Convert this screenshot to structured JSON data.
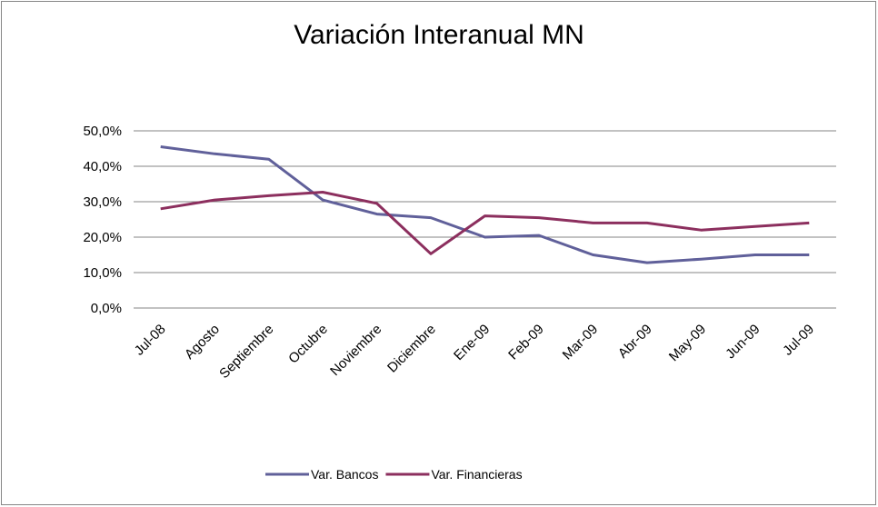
{
  "chart_data": {
    "type": "line",
    "title": "Variación Interanual MN",
    "categories": [
      "Jul-08",
      "Agosto",
      "Septiembre",
      "Octubre",
      "Noviembre",
      "Diciembre",
      "Ene-09",
      "Feb-09",
      "Mar-09",
      "Abr-09",
      "May-09",
      "Jun-09",
      "Jul-09"
    ],
    "series": [
      {
        "name": "Var. Bancos",
        "color": "#60609a",
        "values": [
          45.5,
          43.5,
          42,
          30.5,
          26.5,
          25.5,
          20,
          20.5,
          15,
          12.8,
          13.8,
          15,
          15
        ]
      },
      {
        "name": "Var. Financieras",
        "color": "#8c2f5e",
        "values": [
          28,
          30.5,
          31.7,
          32.7,
          29.5,
          15.3,
          26,
          25.5,
          24,
          24,
          22,
          23,
          24
        ]
      }
    ],
    "ylim": [
      0,
      50
    ],
    "yticks": [
      {
        "value": 0,
        "label": "0,0%"
      },
      {
        "value": 10,
        "label": "10,0%"
      },
      {
        "value": 20,
        "label": "20,0%"
      },
      {
        "value": 30,
        "label": "30,0%"
      },
      {
        "value": 40,
        "label": "40,0%"
      },
      {
        "value": 50,
        "label": "50,0%"
      }
    ],
    "grid": true,
    "legend": "bottom"
  }
}
